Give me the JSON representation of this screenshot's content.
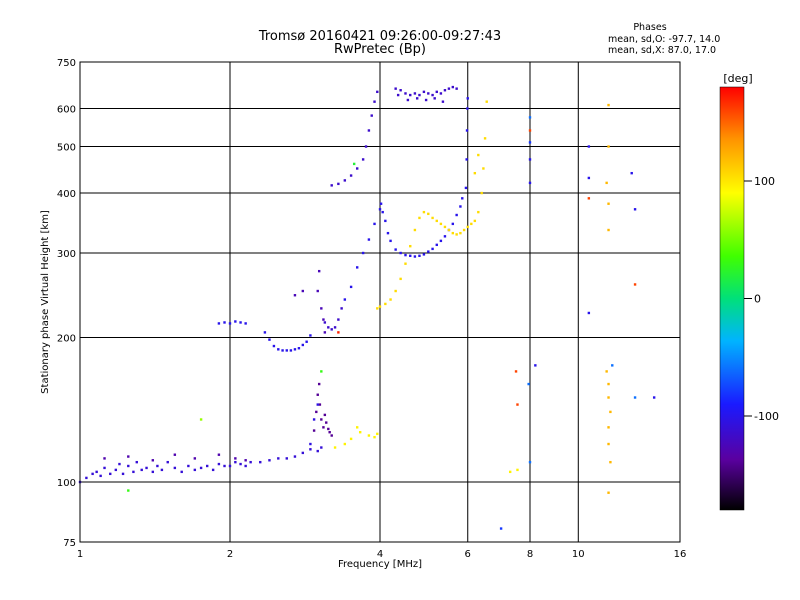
{
  "chart_data": {
    "type": "scatter",
    "title": "Tromsø 20160421 09:26:00-09:27:43",
    "subtitle": "RwPretec (Bp)",
    "phases": {
      "heading": "Phases",
      "line_o": "mean, sd,O: -97.7, 14.0",
      "line_x": "mean, sd,X:  87.0, 17.0"
    },
    "xlabel": "Frequency [MHz]",
    "ylabel": "Stationary phase Virtual Height [km]",
    "x_scale": "log",
    "y_scale": "log",
    "xlim": [
      1,
      16
    ],
    "ylim": [
      75,
      750
    ],
    "x_ticks": [
      1,
      2,
      4,
      6,
      8,
      10,
      16
    ],
    "x_tick_labels": [
      "1",
      "2",
      "4",
      "6",
      "8",
      "10",
      "16"
    ],
    "y_ticks": [
      75,
      100,
      200,
      300,
      400,
      500,
      600,
      750
    ],
    "y_tick_labels": [
      "75",
      "100",
      "200",
      "300",
      "400",
      "500",
      "600",
      "750"
    ],
    "grid": true,
    "colorbar": {
      "label": "[deg]",
      "range": [
        -180,
        180
      ],
      "ticks": [
        100,
        0,
        -100
      ],
      "tick_labels": [
        "100",
        "0",
        "-100"
      ]
    },
    "series": [
      {
        "phase": -110,
        "points": [
          [
            1.0,
            100
          ],
          [
            1.03,
            102
          ],
          [
            1.06,
            104
          ],
          [
            1.08,
            105
          ],
          [
            1.1,
            103
          ],
          [
            1.12,
            107
          ],
          [
            1.15,
            104
          ],
          [
            1.18,
            106
          ],
          [
            1.2,
            109
          ],
          [
            1.22,
            104
          ],
          [
            1.25,
            108
          ],
          [
            1.28,
            105
          ],
          [
            1.3,
            110
          ],
          [
            1.33,
            106
          ],
          [
            1.36,
            107
          ],
          [
            1.4,
            105
          ],
          [
            1.43,
            108
          ],
          [
            1.46,
            106
          ],
          [
            1.5,
            110
          ],
          [
            1.55,
            107
          ],
          [
            1.6,
            105
          ],
          [
            1.65,
            108
          ],
          [
            1.7,
            106
          ],
          [
            1.75,
            107
          ],
          [
            1.8,
            108
          ],
          [
            1.85,
            106
          ],
          [
            1.9,
            109
          ],
          [
            1.95,
            108
          ],
          [
            2.0,
            108
          ],
          [
            2.05,
            110
          ],
          [
            2.1,
            109
          ],
          [
            2.15,
            108
          ],
          [
            2.2,
            110
          ],
          [
            2.3,
            110
          ],
          [
            2.4,
            111
          ],
          [
            2.5,
            112
          ],
          [
            2.6,
            112
          ],
          [
            2.7,
            113
          ],
          [
            2.8,
            115
          ],
          [
            2.9,
            117
          ],
          [
            3.0,
            116
          ],
          [
            3.05,
            118
          ]
        ]
      },
      {
        "phase": -130,
        "points": [
          [
            1.12,
            112
          ],
          [
            1.25,
            113
          ],
          [
            1.4,
            111
          ],
          [
            1.55,
            114
          ],
          [
            1.7,
            112
          ],
          [
            1.9,
            114
          ],
          [
            2.05,
            112
          ],
          [
            2.15,
            111
          ]
        ]
      },
      {
        "phase": -140,
        "points": [
          [
            2.95,
            128
          ],
          [
            2.98,
            140
          ],
          [
            3.0,
            152
          ],
          [
            3.02,
            160
          ],
          [
            3.03,
            145
          ],
          [
            3.05,
            135
          ],
          [
            3.08,
            130
          ],
          [
            3.1,
            138
          ],
          [
            3.12,
            133
          ],
          [
            3.15,
            129
          ],
          [
            3.17,
            127
          ],
          [
            3.2,
            125
          ]
        ]
      },
      {
        "phase": -105,
        "points": [
          [
            2.9,
            120
          ],
          [
            2.95,
            135
          ],
          [
            3.0,
            145
          ]
        ]
      },
      {
        "phase": 95,
        "points": [
          [
            3.25,
            118
          ],
          [
            3.4,
            120
          ],
          [
            3.5,
            123
          ],
          [
            3.6,
            130
          ],
          [
            3.65,
            127
          ],
          [
            3.8,
            125
          ],
          [
            3.9,
            124
          ],
          [
            3.95,
            126
          ],
          [
            7.3,
            105
          ],
          [
            7.55,
            106
          ]
        ]
      },
      {
        "phase": 60,
        "points": [
          [
            1.75,
            135
          ]
        ]
      },
      {
        "phase": 30,
        "points": [
          [
            3.05,
            170
          ],
          [
            1.25,
            96
          ]
        ]
      },
      {
        "phase": -100,
        "points": [
          [
            1.9,
            214
          ],
          [
            1.95,
            215
          ],
          [
            2.0,
            214
          ],
          [
            2.05,
            216
          ],
          [
            2.1,
            215
          ],
          [
            2.15,
            214
          ],
          [
            2.35,
            205
          ],
          [
            2.4,
            198
          ],
          [
            2.45,
            192
          ],
          [
            2.5,
            189
          ],
          [
            2.55,
            188
          ],
          [
            2.6,
            188
          ],
          [
            2.65,
            188
          ],
          [
            2.7,
            189
          ],
          [
            2.75,
            190
          ],
          [
            2.8,
            193
          ],
          [
            2.85,
            196
          ],
          [
            2.9,
            202
          ],
          [
            3.4,
            240
          ],
          [
            3.5,
            255
          ],
          [
            3.6,
            280
          ],
          [
            3.7,
            300
          ],
          [
            3.8,
            320
          ],
          [
            3.9,
            345
          ],
          [
            4.0,
            370
          ],
          [
            4.02,
            380
          ],
          [
            4.05,
            365
          ],
          [
            4.1,
            350
          ],
          [
            4.15,
            330
          ],
          [
            4.2,
            318
          ],
          [
            4.3,
            305
          ],
          [
            4.4,
            300
          ],
          [
            4.5,
            297
          ],
          [
            4.6,
            296
          ],
          [
            4.7,
            295
          ],
          [
            4.8,
            296
          ],
          [
            4.9,
            298
          ],
          [
            5.0,
            302
          ],
          [
            5.1,
            306
          ],
          [
            5.2,
            312
          ],
          [
            5.3,
            318
          ],
          [
            5.4,
            325
          ],
          [
            5.5,
            335
          ],
          [
            5.6,
            345
          ],
          [
            5.7,
            360
          ],
          [
            5.8,
            375
          ],
          [
            5.85,
            390
          ],
          [
            5.95,
            410
          ],
          [
            5.97,
            470
          ],
          [
            5.98,
            540
          ],
          [
            5.99,
            600
          ],
          [
            6.0,
            630
          ]
        ]
      },
      {
        "phase": -115,
        "points": [
          [
            3.1,
            215
          ],
          [
            3.15,
            210
          ],
          [
            3.2,
            208
          ],
          [
            3.25,
            210
          ],
          [
            3.3,
            218
          ],
          [
            3.35,
            230
          ],
          [
            3.2,
            415
          ],
          [
            3.3,
            418
          ],
          [
            3.4,
            425
          ],
          [
            3.5,
            435
          ],
          [
            3.6,
            450
          ],
          [
            3.7,
            470
          ],
          [
            3.75,
            500
          ],
          [
            3.8,
            540
          ],
          [
            3.85,
            580
          ],
          [
            3.9,
            620
          ],
          [
            3.95,
            650
          ],
          [
            4.3,
            660
          ],
          [
            4.4,
            655
          ],
          [
            4.5,
            645
          ],
          [
            4.6,
            640
          ],
          [
            4.7,
            645
          ],
          [
            4.8,
            640
          ],
          [
            4.9,
            650
          ],
          [
            5.0,
            645
          ],
          [
            5.1,
            640
          ],
          [
            5.2,
            650
          ],
          [
            5.3,
            645
          ],
          [
            5.4,
            655
          ],
          [
            5.5,
            660
          ],
          [
            5.6,
            665
          ],
          [
            5.7,
            660
          ],
          [
            4.35,
            640
          ],
          [
            4.55,
            625
          ],
          [
            4.75,
            630
          ],
          [
            4.95,
            625
          ],
          [
            5.15,
            630
          ],
          [
            5.35,
            620
          ]
        ]
      },
      {
        "phase": -125,
        "points": [
          [
            3.0,
            250
          ],
          [
            3.02,
            275
          ],
          [
            3.05,
            230
          ],
          [
            3.08,
            218
          ],
          [
            3.1,
            205
          ],
          [
            2.7,
            245
          ],
          [
            2.8,
            250
          ]
        ]
      },
      {
        "phase": 105,
        "points": [
          [
            3.95,
            230
          ],
          [
            4.0,
            232
          ],
          [
            4.1,
            235
          ],
          [
            4.2,
            240
          ],
          [
            4.3,
            250
          ],
          [
            4.4,
            265
          ],
          [
            4.5,
            285
          ],
          [
            4.6,
            310
          ],
          [
            4.7,
            335
          ],
          [
            4.8,
            355
          ],
          [
            4.9,
            365
          ],
          [
            5.0,
            362
          ],
          [
            5.1,
            355
          ],
          [
            5.2,
            350
          ],
          [
            5.3,
            345
          ],
          [
            5.4,
            340
          ],
          [
            5.5,
            335
          ],
          [
            5.6,
            330
          ],
          [
            5.7,
            328
          ],
          [
            5.8,
            330
          ],
          [
            5.9,
            335
          ],
          [
            6.0,
            340
          ],
          [
            6.1,
            345
          ],
          [
            6.2,
            350
          ],
          [
            6.3,
            365
          ],
          [
            6.4,
            400
          ],
          [
            6.45,
            450
          ],
          [
            6.5,
            520
          ],
          [
            6.55,
            620
          ],
          [
            6.3,
            480
          ],
          [
            6.2,
            440
          ]
        ]
      },
      {
        "phase": 120,
        "points": [
          [
            11.5,
            610
          ],
          [
            11.5,
            500
          ],
          [
            11.4,
            420
          ],
          [
            11.5,
            380
          ],
          [
            11.5,
            335
          ],
          [
            11.4,
            170
          ],
          [
            11.5,
            160
          ],
          [
            11.5,
            150
          ],
          [
            11.6,
            140
          ],
          [
            11.5,
            130
          ],
          [
            11.5,
            120
          ],
          [
            11.6,
            110
          ],
          [
            11.5,
            95
          ]
        ]
      },
      {
        "phase": -100,
        "points": [
          [
            10.5,
            500
          ],
          [
            10.5,
            430
          ],
          [
            12.8,
            440
          ],
          [
            13.0,
            370
          ],
          [
            10.5,
            225
          ],
          [
            8.0,
            470
          ],
          [
            8.0,
            420
          ],
          [
            8.2,
            175
          ],
          [
            14.2,
            150
          ]
        ]
      },
      {
        "phase": 160,
        "points": [
          [
            7.5,
            170
          ],
          [
            7.55,
            145
          ],
          [
            10.5,
            390
          ],
          [
            8.0,
            540
          ],
          [
            13.0,
            258
          ]
        ]
      },
      {
        "phase": -60,
        "points": [
          [
            8.0,
            110
          ],
          [
            8.0,
            575
          ],
          [
            7.95,
            160
          ],
          [
            11.7,
            175
          ],
          [
            13.0,
            150
          ]
        ]
      },
      {
        "phase": -80,
        "points": [
          [
            7.0,
            80
          ],
          [
            8.0,
            510
          ]
        ]
      },
      {
        "phase": 20,
        "points": [
          [
            3.55,
            460
          ]
        ]
      },
      {
        "phase": 170,
        "points": [
          [
            3.3,
            205
          ]
        ]
      }
    ]
  }
}
